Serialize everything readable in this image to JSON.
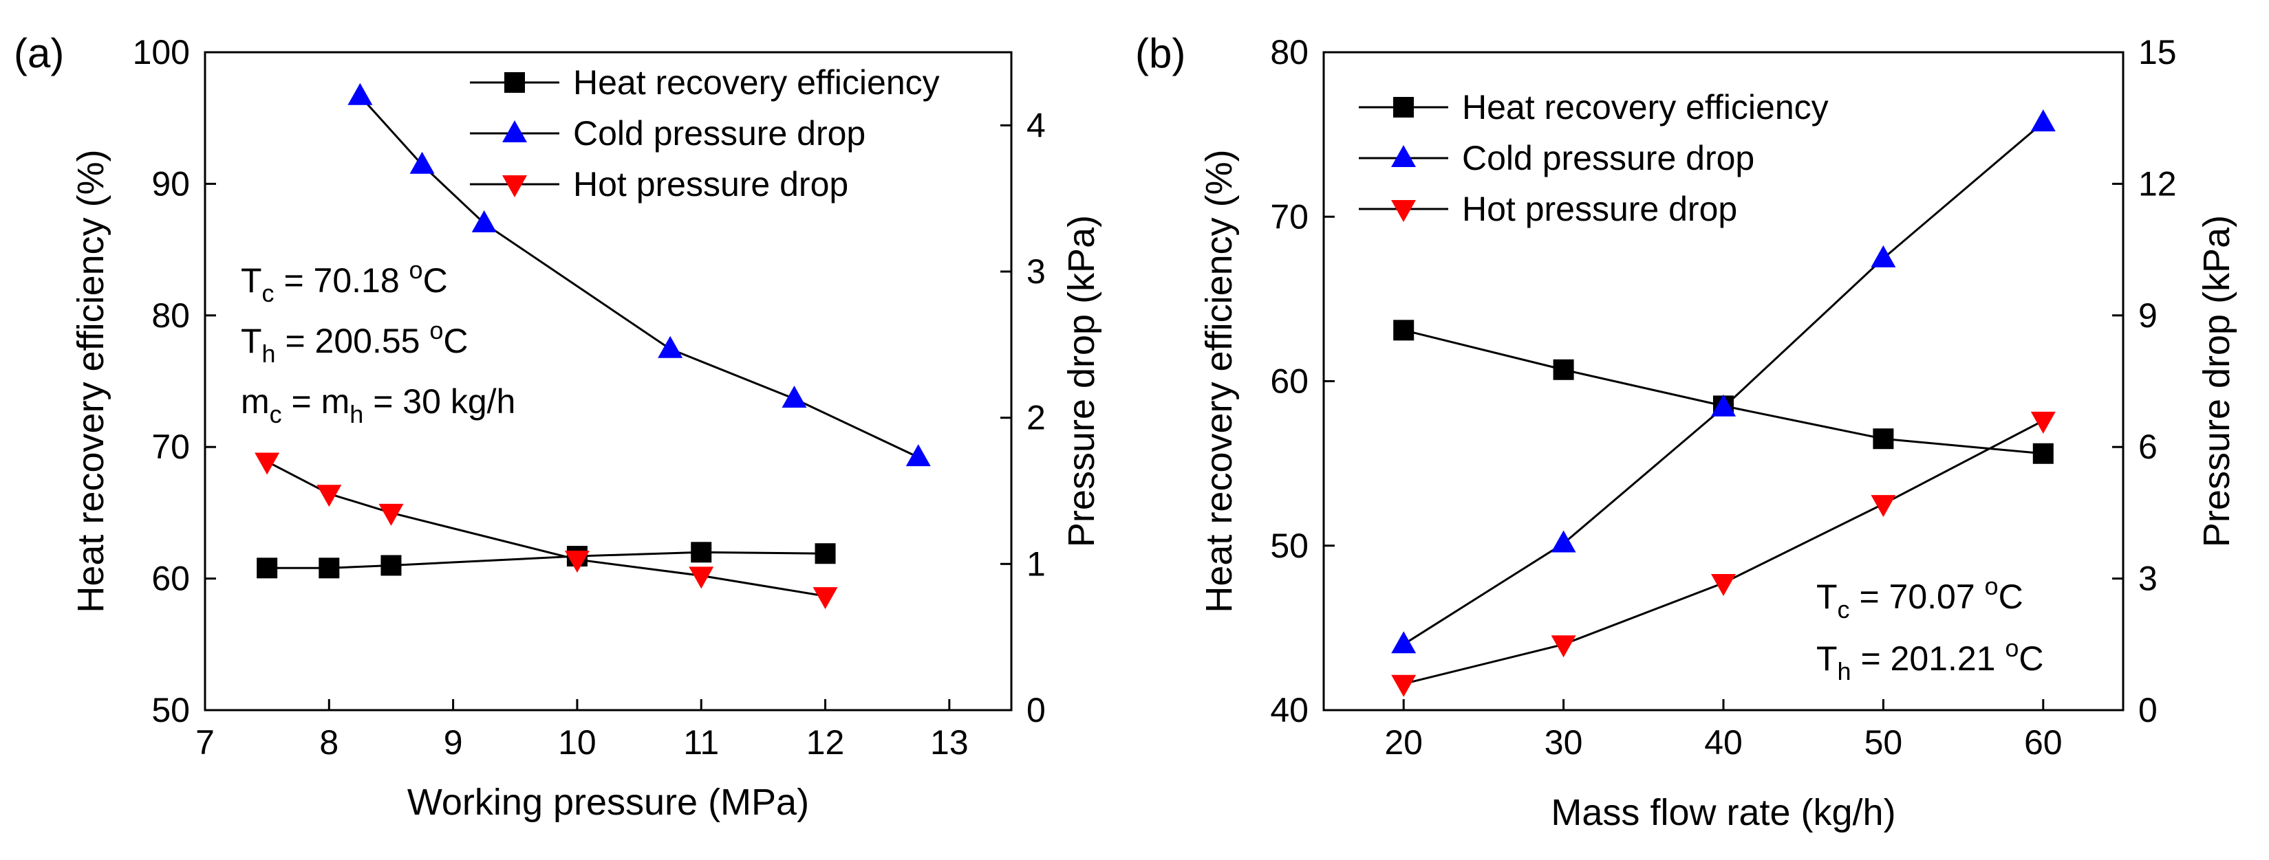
{
  "chart_data": [
    {
      "panel_label": "(a)",
      "type": "line",
      "xlabel": "Working pressure (MPa)",
      "ylabel_left": "Heat recovery efficiency (%)",
      "ylabel_right": "Pressure drop (kPa)",
      "xlim": [
        7,
        13.5
      ],
      "ylim_left": [
        50,
        100
      ],
      "ylim_right": [
        0,
        4.5
      ],
      "xticks": [
        7,
        8,
        9,
        10,
        11,
        12,
        13
      ],
      "yticks_left": [
        50,
        60,
        70,
        80,
        90,
        100
      ],
      "yticks_right": [
        0,
        1,
        2,
        3,
        4
      ],
      "legend_position": "top-right",
      "series": [
        {
          "name": "Heat recovery efficiency",
          "axis": "left",
          "marker": "square",
          "color": "#000000",
          "x": [
            7.5,
            8,
            8.5,
            10,
            11,
            12
          ],
          "values": [
            60.8,
            60.8,
            61.0,
            61.7,
            62.0,
            61.9
          ]
        },
        {
          "name": "Cold pressure drop",
          "axis": "right",
          "marker": "triangle-up",
          "color": "#0000ff",
          "x": [
            8.25,
            8.75,
            9.25,
            10.75,
            11.75,
            12.75
          ],
          "values": [
            4.2,
            3.73,
            3.33,
            2.47,
            2.13,
            1.73
          ]
        },
        {
          "name": "Hot pressure drop",
          "axis": "right",
          "marker": "triangle-down",
          "color": "#ff0000",
          "x": [
            7.5,
            8,
            8.5,
            10,
            11,
            12
          ],
          "values": [
            1.7,
            1.48,
            1.35,
            1.03,
            0.92,
            0.78
          ]
        }
      ],
      "annotations": [
        {
          "main": "T",
          "sub": "c",
          "rest": " = 70.18 ",
          "sup": "o",
          "tail": "C"
        },
        {
          "main": "T",
          "sub": "h",
          "rest": " = 200.55 ",
          "sup": "o",
          "tail": "C"
        },
        {
          "main": "m",
          "sub": "c",
          "rest": " = m",
          "sub2": "h",
          "tail": " = 30 kg/h"
        }
      ]
    },
    {
      "panel_label": "(b)",
      "type": "line",
      "xlabel": "Mass flow rate (kg/h)",
      "ylabel_left": "Heat recovery efficiency (%)",
      "ylabel_right": "Pressure drop (kPa)",
      "xlim": [
        15,
        65
      ],
      "ylim_left": [
        40,
        80
      ],
      "ylim_right": [
        0,
        15
      ],
      "xticks": [
        20,
        30,
        40,
        50,
        60
      ],
      "yticks_left": [
        40,
        50,
        60,
        70,
        80
      ],
      "yticks_right": [
        0,
        3,
        6,
        9,
        12,
        15
      ],
      "legend_position": "top-left",
      "series": [
        {
          "name": "Heat recovery efficiency",
          "axis": "left",
          "marker": "square",
          "color": "#000000",
          "x": [
            20,
            30,
            40,
            50,
            60
          ],
          "values": [
            63.1,
            60.7,
            58.5,
            56.5,
            55.6
          ]
        },
        {
          "name": "Cold pressure drop",
          "axis": "right",
          "marker": "triangle-up",
          "color": "#0000ff",
          "x": [
            20,
            30,
            40,
            50,
            60
          ],
          "values": [
            1.5,
            3.8,
            6.9,
            10.3,
            13.4
          ]
        },
        {
          "name": "Hot pressure drop",
          "axis": "right",
          "marker": "triangle-down",
          "color": "#ff0000",
          "x": [
            20,
            30,
            40,
            50,
            60
          ],
          "values": [
            0.6,
            1.5,
            2.9,
            4.7,
            6.6
          ]
        }
      ],
      "annotations": [
        {
          "main": "T",
          "sub": "c",
          "rest": " = 70.07 ",
          "sup": "o",
          "tail": "C"
        },
        {
          "main": "T",
          "sub": "h",
          "rest": " = 201.21 ",
          "sup": "o",
          "tail": "C"
        }
      ]
    }
  ]
}
